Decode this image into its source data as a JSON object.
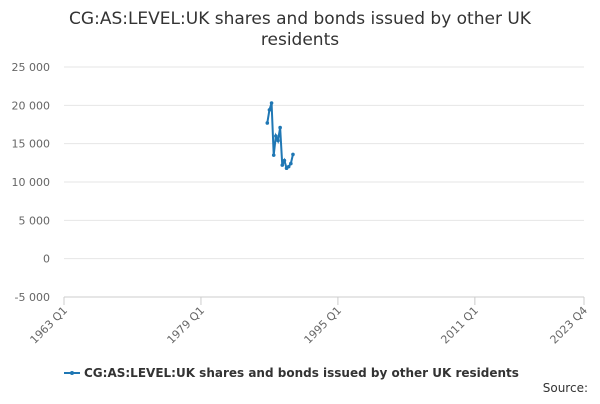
{
  "chart_data": {
    "type": "line",
    "title": "CG:AS:LEVEL:UK shares and bonds issued by other UK residents",
    "x": [
      "1986 Q4",
      "1987 Q1",
      "1987 Q2",
      "1987 Q3",
      "1987 Q4",
      "1988 Q1",
      "1988 Q2",
      "1988 Q3",
      "1988 Q4",
      "1989 Q1",
      "1989 Q2",
      "1989 Q3",
      "1989 Q4"
    ],
    "series": [
      {
        "name": "CG:AS:LEVEL:UK shares and bonds issued by other UK residents",
        "color": "#1f77b4",
        "values": [
          17700,
          19400,
          20300,
          13500,
          16000,
          15400,
          17100,
          12200,
          12800,
          11800,
          12000,
          12400,
          13600
        ]
      }
    ],
    "xlim": [
      "1963 Q1",
      "2023 Q4"
    ],
    "xticks": [
      "1963 Q1",
      "1979 Q1",
      "1995 Q1",
      "2011 Q1",
      "2023 Q4"
    ],
    "ylim": [
      -5000,
      25000
    ],
    "yticks": [
      {
        "value": -5000,
        "label": "-5 000"
      },
      0,
      {
        "value": 5000,
        "label": "5 000"
      },
      {
        "value": 10000,
        "label": "10 000"
      },
      {
        "value": 15000,
        "label": "15 000"
      },
      {
        "value": 20000,
        "label": "20 000"
      },
      {
        "value": 25000,
        "label": "25 000"
      }
    ],
    "grid": true,
    "source": "Source:"
  }
}
